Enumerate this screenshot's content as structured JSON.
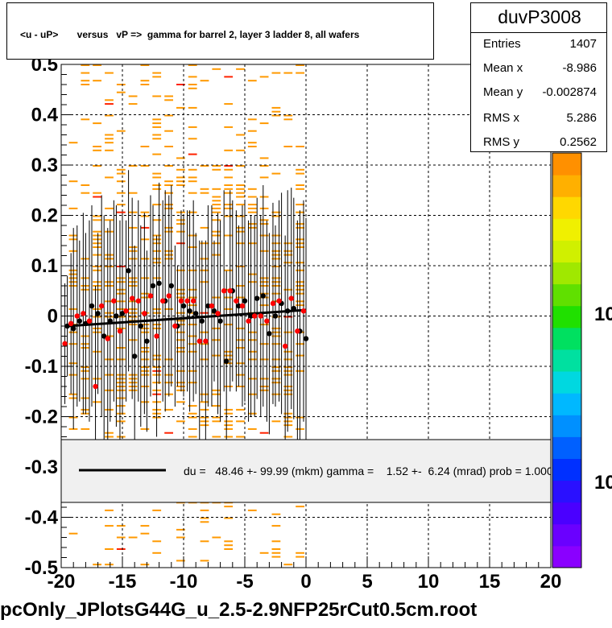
{
  "title": "<u - uP>       versus   vP =>  gamma for barrel 2, layer 3 ladder 8, all wafers",
  "stats": {
    "name": "duvP3008",
    "rows": [
      {
        "label": "Entries",
        "value": "1407"
      },
      {
        "label": "Mean x",
        "value": "-8.986"
      },
      {
        "label": "Mean y",
        "value": "-0.002874"
      },
      {
        "label": "RMS x",
        "value": "5.286"
      },
      {
        "label": "RMS y",
        "value": "0.2562"
      }
    ]
  },
  "legend": {
    "text": "du =   48.46 +- 99.99 (mkm) gamma =    1.52 +-  6.24 (mrad) prob = 1.000"
  },
  "file_title": "pcOnly_JPlotsG44G_u_2.5-2.9NFP25rCut0.5cm.root",
  "palette_labels": [
    "10",
    "10"
  ],
  "colors": {
    "hist": "#ff9900",
    "red_points": "#ff0000",
    "black_points": "#000000",
    "fit_line": "#000000",
    "legend_bg": "#f0f0f0"
  },
  "chart_data": {
    "type": "scatter",
    "title": "<u - uP>       versus   vP =>  gamma for barrel 2, layer 3 ladder 8, all wafers",
    "xlim": [
      -20,
      20
    ],
    "ylim": [
      -0.5,
      0.5
    ],
    "x_ticks": [
      -20,
      -15,
      -10,
      -5,
      0,
      5,
      10,
      15,
      20
    ],
    "y_ticks": [
      -0.5,
      -0.4,
      -0.3,
      -0.2,
      -0.1,
      0,
      0.1,
      0.2,
      0.3,
      0.4,
      0.5
    ],
    "x_tick_labels": [
      "-20",
      "-15",
      "-10",
      "-5",
      "0",
      "5",
      "10",
      "15",
      "20"
    ],
    "y_tick_labels": [
      "-0.5",
      "-0.4",
      "-0.3",
      "-0.2",
      "-0.1",
      "0",
      "0.1",
      "0.2",
      "0.3",
      "0.4",
      "0.5"
    ],
    "grid": true,
    "histogram_x_range": [
      -19.5,
      0
    ],
    "fit_line": {
      "x": [
        -19.5,
        0
      ],
      "y": [
        -0.02,
        0.012
      ]
    },
    "series": [
      {
        "color": "black",
        "x": [
          -19.5,
          -18.5,
          -17.5,
          -16.5,
          -15.5,
          -14.5,
          -13.5,
          -12.5,
          -11.5,
          -10.5,
          -9.5,
          -8.5,
          -7.5,
          -6.5,
          -5.5,
          -4.5,
          -3.5,
          -2.5,
          -1.5,
          -0.5,
          -19,
          -18,
          -17,
          -16,
          -15,
          -14,
          -13,
          -12,
          -11,
          -10,
          -9,
          -8,
          -7,
          -6,
          -5,
          -4,
          -3,
          -2,
          -1,
          0
        ],
        "y": [
          -0.02,
          -0.01,
          0.02,
          -0.04,
          0.0,
          0.09,
          -0.02,
          0.06,
          0.03,
          -0.02,
          0.01,
          -0.01,
          0.01,
          -0.09,
          0.02,
          0.0,
          0.04,
          0.0,
          0.01,
          -0.03,
          -0.025,
          -0.015,
          0.005,
          -0.01,
          0.005,
          -0.08,
          -0.05,
          0.065,
          0.06,
          0.02,
          0.005,
          0.02,
          -0.01,
          0.05,
          0.03,
          0.035,
          -0.035,
          0.025,
          0.015,
          -0.045
        ],
        "yerr": [
          0.1,
          0.16,
          0.2,
          0.24,
          0.22,
          0.2,
          0.2,
          0.16,
          0.22,
          0.12,
          0.2,
          0.16,
          0.14,
          0.18,
          0.16,
          0.2,
          0.22,
          0.18,
          0.24,
          0.24,
          0.2,
          0.18,
          0.16,
          0.2,
          0.2,
          0.22,
          0.18,
          0.2,
          0.2,
          0.18,
          0.16,
          0.2,
          0.2,
          0.18,
          0.2,
          0.2,
          0.2,
          0.22,
          0.22,
          0.24
        ]
      },
      {
        "color": "red",
        "x": [
          -19.7,
          -18.7,
          -17.7,
          -16.7,
          -15.7,
          -14.7,
          -13.7,
          -12.7,
          -11.7,
          -10.7,
          -9.7,
          -8.7,
          -7.7,
          -6.7,
          -5.7,
          -4.7,
          -3.7,
          -2.7,
          -1.7,
          -0.7,
          -19.2,
          -18.2,
          -17.2,
          -16.2,
          -15.2,
          -14.2,
          -13.2,
          -12.2,
          -11.2,
          -10.2,
          -9.2,
          -8.2,
          -7.2,
          -6.2,
          -5.2,
          -4.2,
          -3.2,
          -2.2,
          -1.2,
          -0.2
        ],
        "y": [
          -0.055,
          0.0,
          -0.01,
          0.02,
          0.03,
          0.01,
          0.03,
          0.04,
          0.03,
          -0.02,
          0.03,
          -0.05,
          0.02,
          0.05,
          0.03,
          -0.01,
          0.0,
          0.025,
          -0.06,
          -0.03,
          -0.015,
          0.005,
          -0.14,
          -0.045,
          -0.03,
          0.035,
          0.005,
          -0.04,
          0.04,
          0.03,
          0.03,
          -0.05,
          0.005,
          0.05,
          0.02,
          0.0,
          -0.01,
          0.03,
          0.035,
          0.01
        ],
        "yerr": [
          0.12,
          0.18,
          0.2,
          0.22,
          0.2,
          0.18,
          0.2,
          0.2,
          0.2,
          0.16,
          0.18,
          0.2,
          0.2,
          0.2,
          0.18,
          0.2,
          0.2,
          0.2,
          0.22,
          0.22,
          0.14,
          0.2,
          0.2,
          0.22,
          0.22,
          0.2,
          0.2,
          0.2,
          0.2,
          0.18,
          0.2,
          0.2,
          0.2,
          0.2,
          0.2,
          0.2,
          0.2,
          0.2,
          0.22,
          0.22
        ]
      }
    ]
  }
}
